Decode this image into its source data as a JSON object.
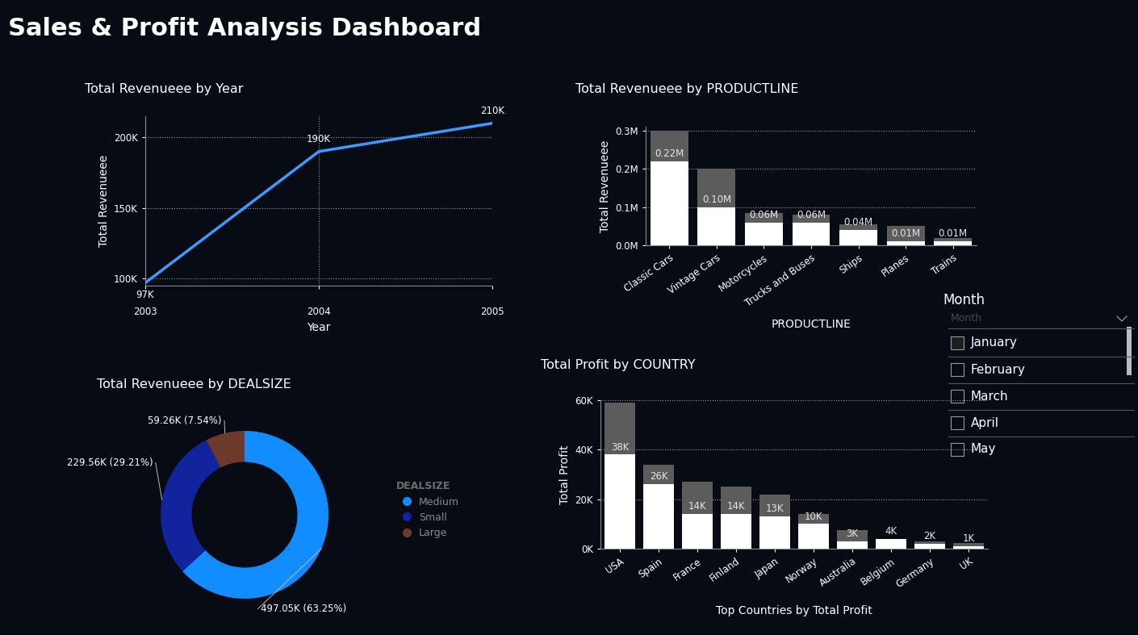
{
  "title": "Sales & Profit Analysis Dashboard",
  "chart_data": [
    {
      "type": "line",
      "title": "Total Revenueee by Year",
      "x_label": "Year",
      "y_label": "Total Revenueee",
      "x": [
        2003,
        2004,
        2005
      ],
      "values": [
        97000,
        190000,
        210000
      ],
      "value_labels": [
        "97K",
        "190K",
        "210K"
      ],
      "data_labels": true,
      "color": "#3d9bff",
      "xlim": [
        2003,
        2005
      ],
      "xticks": [
        2003,
        2004,
        2005
      ],
      "ylim": [
        95000,
        215000
      ],
      "yticks": [
        {
          "value": 100000,
          "label": "100K"
        },
        {
          "value": 150000,
          "label": "150K"
        },
        {
          "value": 200000,
          "label": "200K"
        }
      ],
      "grid": true
    },
    {
      "type": "bar",
      "title": "Total Revenueee by PRODUCTLINE",
      "x_label": "PRODUCTLINE",
      "y_label": "Total Revenueee",
      "categories": [
        "Classic Cars",
        "Vintage Cars",
        "Motorcycles",
        "Trucks and Buses",
        "Ships",
        "Planes",
        "Trains"
      ],
      "values": [
        0.22,
        0.1,
        0.06,
        0.06,
        0.04,
        0.01,
        0.01
      ],
      "totals": [
        0.3,
        0.2,
        0.085,
        0.08,
        0.055,
        0.05,
        0.02
      ],
      "value_labels": [
        "0.22M",
        "0.10M",
        "0.06M",
        "0.06M",
        "0.04M",
        "0.01M",
        "0.01M"
      ],
      "data_labels": true,
      "color": "#ffffff",
      "ylim": [
        0,
        0.31
      ],
      "yticks": [
        {
          "value": 0,
          "label": "0.0M"
        },
        {
          "value": 0.1,
          "label": "0.1M"
        },
        {
          "value": 0.2,
          "label": "0.2M"
        },
        {
          "value": 0.3,
          "label": "0.3M"
        }
      ],
      "grid": true
    },
    {
      "type": "pie",
      "title": "Total Revenueee by DEALSIZE",
      "categories": [
        "Medium",
        "Small",
        "Large"
      ],
      "values": [
        497.05,
        229.56,
        59.26
      ],
      "value_labels": [
        "497.05K (63.25%)",
        "229.56K (29.21%)",
        "59.26K (7.54%)"
      ],
      "colors": [
        "#118dff",
        "#12239e",
        "#6b3a2a"
      ],
      "data_labels": true,
      "legend": "right",
      "legend_title": "DEALSIZE"
    },
    {
      "type": "bar",
      "title": "Total Profit by COUNTRY",
      "x_label": "Top Countries by Total Profit",
      "y_label": "Total Profit",
      "categories": [
        "USA",
        "Spain",
        "France",
        "Finland",
        "Japan",
        "Norway",
        "Australia",
        "Belgium",
        "Germany",
        "UK"
      ],
      "values": [
        38,
        26,
        14,
        14,
        13,
        10,
        3,
        4,
        2,
        1
      ],
      "totals": [
        59,
        34,
        27,
        25,
        22,
        14,
        7.5,
        4,
        3,
        2.3
      ],
      "value_labels": [
        "38K",
        "26K",
        "14K",
        "14K",
        "13K",
        "10K",
        "3K",
        "4K",
        "2K",
        "1K"
      ],
      "data_labels": true,
      "color": "#ffffff",
      "ylim": [
        0,
        60
      ],
      "yticks": [
        {
          "value": 0,
          "label": "0K"
        },
        {
          "value": 20,
          "label": "20K"
        },
        {
          "value": 40,
          "label": "40K"
        },
        {
          "value": 60,
          "label": "60K"
        }
      ],
      "grid": true
    }
  ],
  "slicer": {
    "title": "Month",
    "placeholder": "Month",
    "items": [
      "January",
      "February",
      "March",
      "April",
      "May"
    ],
    "selected": [
      "January"
    ]
  }
}
